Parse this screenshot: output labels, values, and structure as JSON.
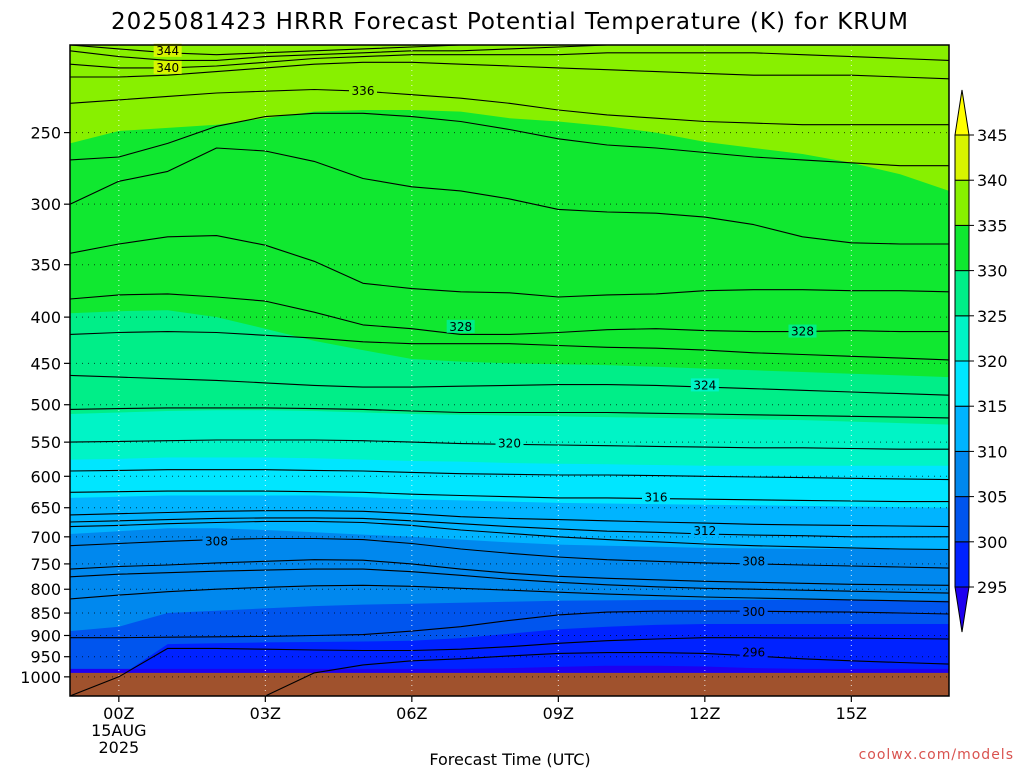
{
  "chart_data": {
    "type": "heatmap",
    "title": "2025081423 HRRR Forecast Potential Temperature (K) for KRUM",
    "xlabel": "Forecast Time (UTC)",
    "credit": "coolwx.com/models",
    "x_ticks": [
      {
        "hour": 0,
        "label": "00Z",
        "sub1": "15AUG",
        "sub2": "2025"
      },
      {
        "hour": 3,
        "label": "03Z"
      },
      {
        "hour": 6,
        "label": "06Z"
      },
      {
        "hour": 9,
        "label": "09Z"
      },
      {
        "hour": 12,
        "label": "12Z"
      },
      {
        "hour": 15,
        "label": "15Z"
      }
    ],
    "xlim_hours": [
      -1,
      17
    ],
    "y_axis": "pressure (hPa), log scale, inverted",
    "ylim_hpa": [
      1050,
      200
    ],
    "y_ticks": [
      250,
      300,
      350,
      400,
      450,
      500,
      550,
      600,
      650,
      700,
      750,
      800,
      850,
      900,
      950,
      1000
    ],
    "grid": "dotted at tick positions",
    "colorbar": {
      "position": "right",
      "levels": [
        295,
        300,
        305,
        310,
        315,
        320,
        325,
        330,
        335,
        340,
        345
      ],
      "colors": [
        "#1e00f0",
        "#0022ff",
        "#0055ee",
        "#0088ee",
        "#00b4ff",
        "#00e6ff",
        "#00f4c6",
        "#00ee88",
        "#10e830",
        "#88f000",
        "#d8f400",
        "#ffff00"
      ]
    },
    "fill_bands": [
      {
        "theta": 294,
        "levels_hpa": [
          980,
          980,
          980,
          980,
          980,
          980,
          980,
          980,
          980,
          978,
          975,
          972,
          972,
          974,
          978,
          980,
          980,
          980,
          980
        ]
      },
      {
        "theta": 297,
        "levels_hpa": [
          1050,
          1000,
          920,
          918,
          916,
          915,
          914,
          912,
          906,
          896,
          886,
          880,
          876,
          874,
          874,
          874,
          874,
          874,
          874
        ]
      },
      {
        "theta": 302,
        "levels_hpa": [
          890,
          880,
          850,
          845,
          840,
          835,
          832,
          830,
          828,
          826,
          824,
          823,
          822,
          822,
          822,
          822,
          822,
          823,
          824
        ]
      },
      {
        "theta": 307,
        "levels_hpa": [
          695,
          690,
          685,
          685,
          688,
          692,
          696,
          700,
          705,
          710,
          714,
          716,
          718,
          720,
          721,
          722,
          722,
          722,
          722
        ]
      },
      {
        "theta": 312,
        "levels_hpa": [
          634,
          632,
          630,
          630,
          630,
          630,
          633,
          636,
          638,
          640,
          642,
          643,
          644,
          645,
          646,
          647,
          648,
          649,
          650
        ]
      },
      {
        "theta": 317,
        "levels_hpa": [
          575,
          574,
          572,
          572,
          572,
          573,
          575,
          577,
          578,
          580,
          581,
          582,
          583,
          584,
          584,
          584,
          584,
          584,
          584
        ]
      },
      {
        "theta": 322,
        "levels_hpa": [
          512,
          510,
          508,
          507,
          507,
          508,
          510,
          512,
          513,
          514,
          515,
          516,
          517,
          518,
          519,
          520,
          522,
          524,
          526
        ]
      },
      {
        "theta": 327,
        "levels_hpa": [
          396,
          394,
          393,
          400,
          412,
          425,
          435,
          445,
          448,
          450,
          451,
          452,
          454,
          456,
          458,
          460,
          462,
          464,
          466
        ]
      },
      {
        "theta": 332,
        "levels_hpa": [
          257,
          249,
          247,
          245,
          241,
          237,
          236,
          236,
          237,
          241,
          243,
          246,
          250,
          256,
          260,
          264,
          270,
          278,
          290
        ]
      },
      {
        "theta": 337,
        "levels_hpa": [
          210,
          210,
          210,
          210,
          210,
          210,
          210,
          210,
          210,
          210,
          210,
          210,
          210,
          210,
          210,
          210,
          210,
          210,
          210
        ]
      }
    ],
    "contour_lines": [
      {
        "theta": 344,
        "levels_hpa": [
          200,
          202,
          204,
          205,
          204,
          203,
          202,
          201,
          200,
          200,
          200,
          200,
          200,
          200,
          200,
          200,
          200,
          200,
          200
        ]
      },
      {
        "theta": 342,
        "levels_hpa": [
          203,
          206,
          208,
          208,
          206,
          205,
          204,
          203,
          203,
          202,
          201,
          200,
          200,
          200,
          200,
          200,
          200,
          200,
          200
        ]
      },
      {
        "theta": 340,
        "levels_hpa": [
          210,
          212,
          212,
          211,
          209,
          207,
          206,
          205,
          205,
          205,
          205,
          204,
          204,
          204,
          204,
          205,
          206,
          207,
          208
        ]
      },
      {
        "theta": 338,
        "levels_hpa": [
          217,
          217,
          216,
          214,
          212,
          210,
          209,
          209,
          210,
          211,
          212,
          213,
          214,
          215,
          216,
          216,
          216,
          217,
          218
        ]
      },
      {
        "theta": 336,
        "levels_hpa": [
          232,
          230,
          228,
          226,
          225,
          224,
          225,
          227,
          229,
          232,
          236,
          239,
          241,
          243,
          244,
          245,
          245,
          245,
          245
        ]
      },
      {
        "theta": 334,
        "levels_hpa": [
          268,
          266,
          257,
          246,
          240,
          238,
          238,
          240,
          243,
          248,
          254,
          258,
          260,
          263,
          266,
          268,
          270,
          272,
          272
        ]
      },
      {
        "theta": 332,
        "levels_hpa": [
          300,
          283,
          276,
          260,
          262,
          269,
          281,
          287,
          290,
          296,
          304,
          306,
          307,
          310,
          316,
          326,
          331,
          332,
          332
        ]
      },
      {
        "theta": 330,
        "levels_hpa": [
          340,
          332,
          326,
          325,
          333,
          347,
          367,
          372,
          375,
          376,
          380,
          378,
          377,
          374,
          373,
          373,
          374,
          374,
          375
        ]
      },
      {
        "theta": 328,
        "levels_hpa": [
          382,
          378,
          377,
          380,
          384,
          395,
          408,
          412,
          418,
          418,
          416,
          413,
          412,
          414,
          415,
          415,
          414,
          415,
          415
        ]
      },
      {
        "theta": 326,
        "levels_hpa": [
          418,
          416,
          415,
          416,
          419,
          422,
          426,
          428,
          428,
          428,
          430,
          432,
          433,
          435,
          438,
          440,
          442,
          444,
          446
        ]
      },
      {
        "theta": 324,
        "levels_hpa": [
          464,
          466,
          468,
          470,
          473,
          476,
          478,
          478,
          477,
          476,
          475,
          475,
          476,
          478,
          480,
          482,
          484,
          486,
          488
        ]
      },
      {
        "theta": 322,
        "levels_hpa": [
          506,
          505,
          504,
          504,
          504,
          505,
          506,
          508,
          510,
          510,
          510,
          510,
          511,
          512,
          513,
          514,
          515,
          516,
          517
        ]
      },
      {
        "theta": 320,
        "levels_hpa": [
          550,
          549,
          548,
          547,
          547,
          547,
          548,
          550,
          552,
          553,
          554,
          555,
          556,
          557,
          558,
          558,
          559,
          560,
          560
        ]
      },
      {
        "theta": 318,
        "levels_hpa": [
          592,
          591,
          590,
          590,
          590,
          591,
          592,
          594,
          596,
          597,
          598,
          598,
          599,
          600,
          601,
          602,
          603,
          604,
          605
        ]
      },
      {
        "theta": 316,
        "levels_hpa": [
          625,
          624,
          623,
          623,
          623,
          624,
          625,
          628,
          630,
          632,
          634,
          634,
          635,
          636,
          637,
          638,
          639,
          640,
          640
        ]
      },
      {
        "theta": 314,
        "levels_hpa": [
          662,
          660,
          658,
          656,
          655,
          655,
          656,
          660,
          665,
          668,
          670,
          672,
          674,
          676,
          678,
          679,
          680,
          681,
          682
        ]
      },
      {
        "theta": 312,
        "levels_hpa": [
          674,
          672,
          670,
          668,
          667,
          667,
          668,
          672,
          677,
          682,
          686,
          690,
          692,
          695,
          697,
          698,
          700,
          700,
          700
        ]
      },
      {
        "theta": 310,
        "levels_hpa": [
          682,
          680,
          677,
          675,
          673,
          673,
          675,
          680,
          688,
          694,
          700,
          705,
          709,
          713,
          716,
          718,
          720,
          722,
          723
        ]
      },
      {
        "theta": 308,
        "levels_hpa": [
          716,
          712,
          708,
          705,
          703,
          703,
          705,
          712,
          722,
          730,
          737,
          742,
          745,
          748,
          750,
          752,
          754,
          756,
          758
        ]
      },
      {
        "theta": 306,
        "levels_hpa": [
          760,
          755,
          752,
          748,
          745,
          742,
          743,
          750,
          760,
          768,
          774,
          778,
          781,
          784,
          786,
          788,
          790,
          791,
          792
        ]
      },
      {
        "theta": 304,
        "levels_hpa": [
          775,
          770,
          767,
          764,
          762,
          760,
          760,
          765,
          772,
          780,
          786,
          791,
          795,
          798,
          800,
          802,
          804,
          806,
          808
        ]
      },
      {
        "theta": 302,
        "levels_hpa": [
          820,
          812,
          805,
          800,
          796,
          793,
          792,
          794,
          798,
          802,
          806,
          810,
          813,
          816,
          818,
          820,
          822,
          824,
          826
        ]
      },
      {
        "theta": 300,
        "levels_hpa": [
          905,
          905,
          904,
          903,
          902,
          900,
          898,
          890,
          880,
          866,
          854,
          848,
          846,
          846,
          846,
          847,
          848,
          850,
          852
        ]
      },
      {
        "theta": 298,
        "levels_hpa": [
          1050,
          1000,
          930,
          930,
          932,
          934,
          935,
          935,
          932,
          926,
          918,
          912,
          908,
          905,
          905,
          906,
          906,
          907,
          908
        ]
      },
      {
        "theta": 296,
        "levels_hpa": [
          1050,
          1050,
          1050,
          1050,
          1050,
          990,
          970,
          960,
          955,
          948,
          942,
          940,
          940,
          942,
          948,
          955,
          960,
          964,
          968
        ]
      }
    ],
    "contour_labels": [
      {
        "text": "344",
        "hour": 1.0,
        "hpa": 203
      },
      {
        "text": "340",
        "hour": 1.0,
        "hpa": 212
      },
      {
        "text": "336",
        "hour": 5.0,
        "hpa": 225
      },
      {
        "text": "328",
        "hour": 7.0,
        "hpa": 410
      },
      {
        "text": "328",
        "hour": 14.0,
        "hpa": 415
      },
      {
        "text": "324",
        "hour": 12.0,
        "hpa": 476
      },
      {
        "text": "320",
        "hour": 8.0,
        "hpa": 552
      },
      {
        "text": "316",
        "hour": 11.0,
        "hpa": 633
      },
      {
        "text": "312",
        "hour": 12.0,
        "hpa": 690
      },
      {
        "text": "308",
        "hour": 2.0,
        "hpa": 708
      },
      {
        "text": "308",
        "hour": 13.0,
        "hpa": 745
      },
      {
        "text": "300",
        "hour": 13.0,
        "hpa": 848
      },
      {
        "text": "296",
        "hour": 13.0,
        "hpa": 940
      }
    ],
    "ground": {
      "top_hpa": 990,
      "color": "#a0522d"
    }
  }
}
